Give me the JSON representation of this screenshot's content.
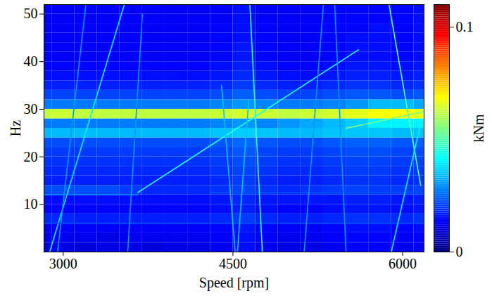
{
  "chart_data": {
    "type": "heatmap",
    "x_label": "Speed [rpm]",
    "y_label": "Hz",
    "xlim": [
      2830,
      6190
    ],
    "xticks": [
      3000,
      4500,
      6000
    ],
    "ylim": [
      0,
      52
    ],
    "yticks": [
      10,
      20,
      30,
      40,
      50
    ],
    "x_edges": [
      2830,
      2900,
      3100,
      3300,
      3500,
      3700,
      3900,
      4100,
      4300,
      4500,
      4700,
      4900,
      5100,
      5300,
      5500,
      5700,
      5900,
      6100,
      6190
    ],
    "y_edges": [
      0,
      2,
      4,
      6,
      8,
      10,
      12,
      14,
      16,
      18,
      20,
      22,
      24,
      26,
      28,
      30,
      32,
      34,
      36,
      38,
      40,
      42,
      44,
      46,
      48,
      50,
      52
    ],
    "cells": [
      [
        0.011,
        0.011,
        0.01,
        0.011,
        0.011,
        0.01,
        0.011,
        0.011,
        0.012,
        0.015,
        0.012,
        0.011,
        0.011,
        0.012,
        0.013,
        0.013,
        0.012,
        0.013
      ],
      [
        0.012,
        0.012,
        0.012,
        0.011,
        0.012,
        0.012,
        0.012,
        0.012,
        0.013,
        0.015,
        0.013,
        0.012,
        0.012,
        0.013,
        0.014,
        0.014,
        0.013,
        0.014
      ],
      [
        0.013,
        0.013,
        0.013,
        0.013,
        0.013,
        0.013,
        0.013,
        0.013,
        0.014,
        0.016,
        0.014,
        0.013,
        0.013,
        0.014,
        0.015,
        0.015,
        0.014,
        0.015
      ],
      [
        0.018,
        0.018,
        0.017,
        0.017,
        0.017,
        0.017,
        0.017,
        0.017,
        0.018,
        0.02,
        0.018,
        0.017,
        0.017,
        0.018,
        0.019,
        0.019,
        0.018,
        0.019
      ],
      [
        0.014,
        0.014,
        0.014,
        0.014,
        0.014,
        0.014,
        0.014,
        0.014,
        0.015,
        0.017,
        0.015,
        0.014,
        0.014,
        0.015,
        0.016,
        0.016,
        0.015,
        0.016
      ],
      [
        0.015,
        0.015,
        0.015,
        0.015,
        0.015,
        0.015,
        0.015,
        0.015,
        0.016,
        0.018,
        0.016,
        0.016,
        0.016,
        0.016,
        0.017,
        0.017,
        0.016,
        0.017
      ],
      [
        0.022,
        0.022,
        0.022,
        0.022,
        0.02,
        0.018,
        0.018,
        0.018,
        0.019,
        0.021,
        0.019,
        0.018,
        0.019,
        0.02,
        0.021,
        0.02,
        0.02,
        0.021
      ],
      [
        0.017,
        0.017,
        0.017,
        0.017,
        0.017,
        0.017,
        0.017,
        0.017,
        0.018,
        0.02,
        0.018,
        0.017,
        0.017,
        0.018,
        0.019,
        0.019,
        0.018,
        0.019
      ],
      [
        0.018,
        0.018,
        0.018,
        0.018,
        0.018,
        0.018,
        0.018,
        0.018,
        0.019,
        0.021,
        0.019,
        0.018,
        0.018,
        0.019,
        0.02,
        0.02,
        0.019,
        0.02
      ],
      [
        0.019,
        0.019,
        0.019,
        0.019,
        0.019,
        0.019,
        0.019,
        0.019,
        0.02,
        0.022,
        0.02,
        0.019,
        0.019,
        0.02,
        0.021,
        0.021,
        0.02,
        0.021
      ],
      [
        0.02,
        0.02,
        0.02,
        0.02,
        0.02,
        0.02,
        0.02,
        0.02,
        0.021,
        0.023,
        0.021,
        0.02,
        0.02,
        0.021,
        0.022,
        0.022,
        0.021,
        0.022
      ],
      [
        0.022,
        0.022,
        0.022,
        0.022,
        0.022,
        0.022,
        0.022,
        0.022,
        0.023,
        0.025,
        0.023,
        0.022,
        0.022,
        0.023,
        0.024,
        0.024,
        0.023,
        0.024
      ],
      [
        0.034,
        0.034,
        0.034,
        0.034,
        0.034,
        0.034,
        0.034,
        0.034,
        0.035,
        0.036,
        0.035,
        0.034,
        0.034,
        0.035,
        0.035,
        0.035,
        0.034,
        0.035
      ],
      [
        0.027,
        0.027,
        0.027,
        0.027,
        0.027,
        0.027,
        0.027,
        0.027,
        0.028,
        0.03,
        0.028,
        0.03,
        0.032,
        0.034,
        0.036,
        0.04,
        0.04,
        0.04
      ],
      [
        0.062,
        0.063,
        0.062,
        0.062,
        0.062,
        0.062,
        0.062,
        0.062,
        0.063,
        0.064,
        0.063,
        0.062,
        0.063,
        0.064,
        0.066,
        0.068,
        0.068,
        0.066
      ],
      [
        0.027,
        0.027,
        0.027,
        0.027,
        0.027,
        0.027,
        0.027,
        0.027,
        0.028,
        0.03,
        0.028,
        0.027,
        0.027,
        0.028,
        0.03,
        0.034,
        0.034,
        0.032
      ],
      [
        0.021,
        0.021,
        0.021,
        0.021,
        0.021,
        0.021,
        0.021,
        0.021,
        0.022,
        0.024,
        0.022,
        0.021,
        0.021,
        0.022,
        0.023,
        0.023,
        0.022,
        0.023
      ],
      [
        0.017,
        0.017,
        0.017,
        0.017,
        0.017,
        0.017,
        0.017,
        0.017,
        0.018,
        0.02,
        0.018,
        0.017,
        0.017,
        0.018,
        0.019,
        0.019,
        0.018,
        0.019
      ],
      [
        0.015,
        0.015,
        0.015,
        0.015,
        0.015,
        0.015,
        0.015,
        0.015,
        0.016,
        0.018,
        0.016,
        0.015,
        0.015,
        0.016,
        0.017,
        0.017,
        0.016,
        0.017
      ],
      [
        0.014,
        0.014,
        0.014,
        0.014,
        0.014,
        0.014,
        0.014,
        0.014,
        0.015,
        0.017,
        0.015,
        0.014,
        0.014,
        0.015,
        0.016,
        0.016,
        0.015,
        0.016
      ],
      [
        0.013,
        0.013,
        0.013,
        0.013,
        0.013,
        0.013,
        0.013,
        0.013,
        0.014,
        0.016,
        0.014,
        0.013,
        0.013,
        0.014,
        0.015,
        0.015,
        0.014,
        0.015
      ],
      [
        0.013,
        0.013,
        0.013,
        0.013,
        0.013,
        0.013,
        0.013,
        0.013,
        0.014,
        0.016,
        0.014,
        0.013,
        0.013,
        0.014,
        0.015,
        0.015,
        0.014,
        0.015
      ],
      [
        0.013,
        0.013,
        0.013,
        0.013,
        0.013,
        0.013,
        0.013,
        0.013,
        0.014,
        0.015,
        0.014,
        0.013,
        0.013,
        0.014,
        0.015,
        0.015,
        0.014,
        0.015
      ],
      [
        0.013,
        0.013,
        0.013,
        0.013,
        0.013,
        0.013,
        0.013,
        0.013,
        0.014,
        0.015,
        0.014,
        0.013,
        0.013,
        0.014,
        0.014,
        0.015,
        0.014,
        0.015
      ],
      [
        0.013,
        0.013,
        0.013,
        0.013,
        0.013,
        0.013,
        0.013,
        0.013,
        0.013,
        0.015,
        0.013,
        0.013,
        0.013,
        0.014,
        0.014,
        0.014,
        0.014,
        0.015
      ],
      [
        0.013,
        0.013,
        0.013,
        0.013,
        0.013,
        0.013,
        0.013,
        0.013,
        0.013,
        0.015,
        0.013,
        0.013,
        0.013,
        0.014,
        0.014,
        0.014,
        0.014,
        0.015
      ]
    ],
    "ridges": [
      {
        "points": [
          [
            2880,
            0
          ],
          [
            3540,
            52
          ]
        ],
        "value": 0.04
      },
      {
        "points": [
          [
            2950,
            0
          ],
          [
            3200,
            52
          ]
        ],
        "value": 0.03
      },
      {
        "points": [
          [
            3660,
            12.5
          ],
          [
            5610,
            42.5
          ]
        ],
        "value": 0.045
      },
      {
        "points": [
          [
            2830,
            12
          ],
          [
            3660,
            12
          ]
        ],
        "value": 0.028
      },
      {
        "points": [
          [
            4300,
            12.5
          ],
          [
            6190,
            12.5
          ]
        ],
        "value": 0.022
      },
      {
        "points": [
          [
            2830,
            6
          ],
          [
            6190,
            6
          ]
        ],
        "value": 0.022
      },
      {
        "points": [
          [
            3700,
            50
          ],
          [
            3570,
            0
          ]
        ],
        "value": 0.03
      },
      {
        "points": [
          [
            4400,
            35
          ],
          [
            4520,
            0
          ]
        ],
        "value": 0.035
      },
      {
        "points": [
          [
            4540,
            0
          ],
          [
            4640,
            32
          ]
        ],
        "value": 0.035
      },
      {
        "points": [
          [
            4650,
            52
          ],
          [
            4760,
            0
          ]
        ],
        "value": 0.045
      },
      {
        "points": [
          [
            5130,
            0
          ],
          [
            5300,
            52
          ]
        ],
        "value": 0.03
      },
      {
        "points": [
          [
            5400,
            52
          ],
          [
            5500,
            0
          ]
        ],
        "value": 0.03
      },
      {
        "points": [
          [
            5880,
            52
          ],
          [
            6160,
            14
          ]
        ],
        "value": 0.05
      },
      {
        "points": [
          [
            5900,
            0
          ],
          [
            6150,
            26
          ]
        ],
        "value": 0.04
      },
      {
        "points": [
          [
            5500,
            26
          ],
          [
            6190,
            29.5
          ]
        ],
        "value": 0.055
      }
    ],
    "colorbar": {
      "label": "kNm",
      "range": [
        0,
        0.11
      ],
      "ticks": [
        0,
        0.1
      ]
    }
  }
}
